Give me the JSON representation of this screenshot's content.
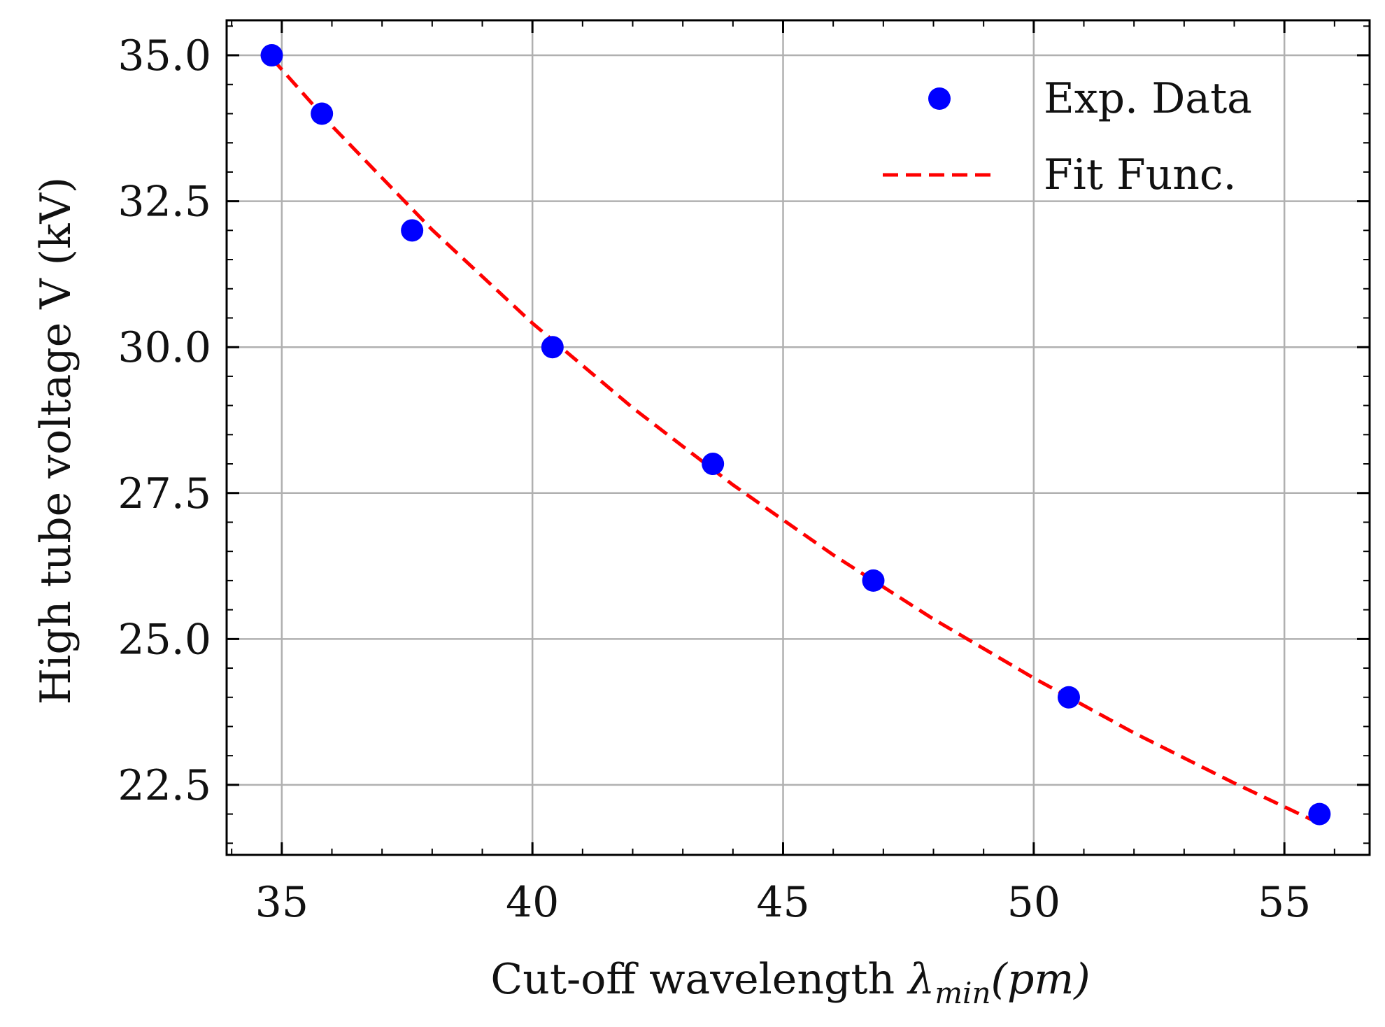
{
  "chart_data": {
    "type": "scatter",
    "xlabel": "Cut-off wavelength",
    "xlabel_symbol": "λ",
    "xlabel_subscript": "min",
    "xlabel_unit": "(pm)",
    "ylabel": "High tube voltage V (kV)",
    "xlim": [
      33.9,
      56.7
    ],
    "ylim": [
      21.3,
      35.6
    ],
    "x_ticks": [
      35,
      40,
      45,
      50,
      55
    ],
    "x_tick_labels": [
      "35",
      "40",
      "45",
      "50",
      "55"
    ],
    "y_ticks": [
      22.5,
      25.0,
      27.5,
      30.0,
      32.5,
      35.0
    ],
    "y_tick_labels": [
      "22.5",
      "25.0",
      "27.5",
      "30.0",
      "32.5",
      "35.0"
    ],
    "x_minor_step": 1,
    "y_minor_step": 0.5,
    "grid": true,
    "legend_position": "top-right",
    "series": [
      {
        "name": "Exp. Data",
        "kind": "scatter",
        "color": "#0000ff",
        "x": [
          34.8,
          35.8,
          37.6,
          40.4,
          43.6,
          46.8,
          50.7,
          55.7
        ],
        "y": [
          35.0,
          34.0,
          32.0,
          30.0,
          28.0,
          26.0,
          24.0,
          22.0
        ]
      },
      {
        "name": "Fit Func.",
        "kind": "line",
        "style": "dashed",
        "color": "#ff0000",
        "x": [
          34.8,
          36.0,
          38.0,
          40.0,
          42.0,
          44.0,
          46.0,
          48.0,
          50.0,
          52.0,
          54.0,
          55.7
        ],
        "y": [
          34.95,
          33.79,
          32.01,
          30.41,
          28.96,
          27.64,
          26.44,
          25.34,
          24.33,
          23.39,
          22.53,
          21.84
        ]
      }
    ]
  }
}
